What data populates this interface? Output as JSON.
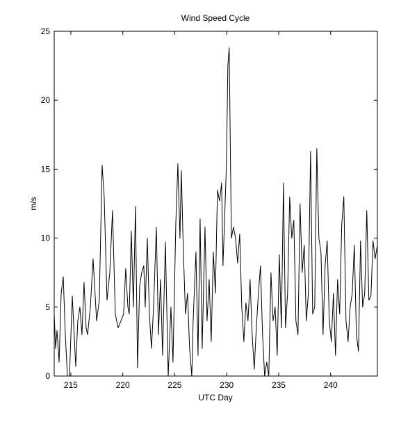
{
  "chart_data": {
    "type": "line",
    "title": "Wind Speed Cycle",
    "x_label": "UTC Day",
    "y_label": "m/s",
    "x": [
      213.4,
      213.53,
      213.67,
      213.87,
      214.07,
      214.27,
      214.47,
      214.67,
      214.87,
      215.14,
      215.47,
      215.67,
      215.87,
      216.07,
      216.27,
      216.47,
      216.61,
      216.88,
      217.14,
      217.48,
      217.74,
      218.01,
      218.21,
      218.48,
      218.75,
      219.01,
      219.28,
      219.55,
      219.82,
      220.08,
      220.28,
      220.49,
      220.62,
      220.82,
      221.02,
      221.22,
      221.42,
      221.62,
      221.82,
      222.02,
      222.16,
      222.36,
      222.56,
      222.76,
      222.96,
      223.23,
      223.43,
      223.63,
      223.83,
      224.1,
      224.37,
      224.63,
      224.83,
      225.1,
      225.3,
      225.5,
      225.63,
      225.83,
      226.03,
      226.23,
      226.43,
      226.64,
      226.77,
      227.04,
      227.24,
      227.44,
      227.64,
      227.91,
      228.11,
      228.31,
      228.51,
      228.71,
      228.91,
      229.11,
      229.31,
      229.51,
      229.64,
      229.78,
      229.98,
      230.11,
      230.24,
      230.45,
      230.65,
      230.85,
      231.05,
      231.25,
      231.45,
      231.65,
      231.85,
      232.05,
      232.25,
      232.45,
      232.65,
      232.85,
      233.05,
      233.25,
      233.45,
      233.65,
      233.85,
      234.05,
      234.26,
      234.46,
      234.66,
      234.86,
      235.06,
      235.26,
      235.46,
      235.66,
      235.86,
      236.06,
      236.26,
      236.46,
      236.66,
      236.86,
      237.06,
      237.26,
      237.46,
      237.66,
      237.86,
      238.07,
      238.27,
      238.47,
      238.67,
      238.87,
      239.07,
      239.27,
      239.47,
      239.67,
      239.87,
      240.07,
      240.27,
      240.47,
      240.67,
      240.87,
      241.07,
      241.27,
      241.48,
      241.68,
      241.88,
      242.08,
      242.28,
      242.48,
      242.68,
      242.88,
      243.08,
      243.28,
      243.48,
      243.68,
      243.88,
      244.08,
      244.28,
      244.48
    ],
    "series": [
      {
        "name": "wind speed",
        "color": "#000000",
        "values": [
          4.5,
          2,
          3.3,
          1,
          6,
          7.2,
          3,
          0,
          0,
          5.8,
          0.7,
          4,
          5,
          3,
          6.8,
          3.5,
          3,
          5,
          8.5,
          4,
          5.5,
          15.3,
          13,
          5.5,
          7.5,
          12,
          4.5,
          3.5,
          4,
          4.5,
          7.8,
          5,
          4.5,
          10.5,
          5,
          12.3,
          0.6,
          6.5,
          7.5,
          8,
          5,
          10,
          4.5,
          2,
          5,
          10.8,
          3,
          7,
          1.5,
          9.7,
          0,
          5,
          1,
          11,
          15.4,
          10,
          14.9,
          9,
          4.5,
          6,
          2,
          0,
          4,
          9,
          1.5,
          11.4,
          2,
          10.8,
          4,
          7,
          2.5,
          9,
          6,
          13.5,
          12.7,
          14,
          8,
          11,
          15.5,
          22.5,
          23.8,
          10,
          10.8,
          10,
          8.2,
          10.3,
          5,
          2.5,
          5.3,
          4,
          7,
          3,
          0.5,
          3.5,
          6,
          8,
          3,
          0,
          1,
          0,
          7.5,
          4,
          5,
          1.5,
          8.8,
          3.5,
          14,
          3.5,
          6,
          13,
          10,
          11.3,
          4,
          3,
          12.5,
          7.5,
          9.5,
          4,
          6,
          16.3,
          4.5,
          5,
          16.5,
          10,
          9,
          3,
          8,
          9.8,
          4,
          2.5,
          6,
          1.5,
          7,
          4.5,
          11,
          13,
          4,
          2.5,
          5,
          6,
          9.5,
          3,
          1.8,
          9.8,
          5,
          6,
          12,
          5.5,
          5.8,
          9.8,
          8.5,
          9.4
        ]
      }
    ],
    "xlim": [
      213.4,
      244.5
    ],
    "xticks": [
      215,
      220,
      225,
      230,
      235,
      240
    ],
    "ylim": [
      0,
      25
    ],
    "yticks": [
      0,
      5,
      10,
      15,
      20,
      25
    ]
  }
}
